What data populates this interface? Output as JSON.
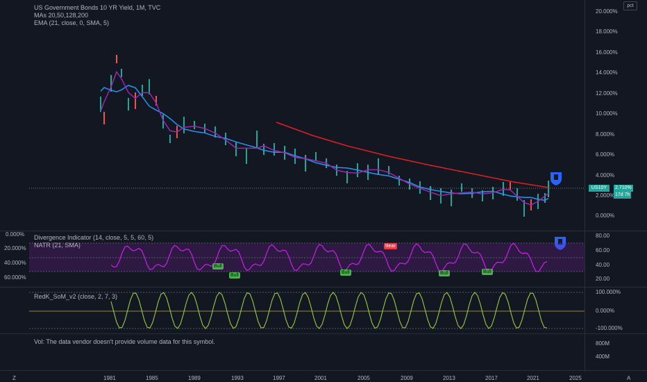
{
  "header": {
    "title": "US Government Bonds 10 YR Yield, 1M, TVC",
    "line2": "MAs 20,50,128,200",
    "line3": "EMA (21, close, 0, SMA, 5)"
  },
  "main_pane": {
    "price_label": "US10Y",
    "price_value": "2.710%",
    "price_countdown": "17d 7h",
    "scale_button": "pct",
    "y_ticks": [
      "20.000%",
      "18.000%",
      "16.000%",
      "14.000%",
      "12.000%",
      "10.000%",
      "8.000%",
      "6.000%",
      "4.000%",
      "2.000%",
      "0.000%"
    ]
  },
  "divergence_pane": {
    "title": "Divergence Indicator (14, close, 5, 5, 60, 5)",
    "subtitle": "NATR (21, SMA)",
    "left_ticks": [
      "0.000%",
      "20.000%",
      "40.000%",
      "60.000%"
    ],
    "right_ticks": [
      "80.00",
      "60.00",
      "40.00",
      "20.00"
    ],
    "bull_label": "Bull",
    "bear_label": "Bear"
  },
  "som_pane": {
    "title": "RedK_SoM_v2 (close, 2, 7, 3)",
    "right_ticks": [
      "100.000%",
      "0.000%",
      "-100.000%"
    ]
  },
  "vol_pane": {
    "message": "Vol: The data vendor doesn't provide volume data for this symbol.",
    "right_ticks": [
      "800M",
      "400M"
    ]
  },
  "x_axis": {
    "labels": [
      "1981",
      "1985",
      "1989",
      "1993",
      "1997",
      "2001",
      "2005",
      "2009",
      "2013",
      "2017",
      "2021",
      "2025"
    ],
    "corner_left": "Z",
    "corner_right": "A"
  },
  "colors": {
    "background": "#131722",
    "ma_red": "#e02020",
    "ma_blue": "#2196f3",
    "ma_purple": "#9c27b0",
    "osc_purple": "#c21fe0",
    "badge_teal": "#26a69a"
  }
}
